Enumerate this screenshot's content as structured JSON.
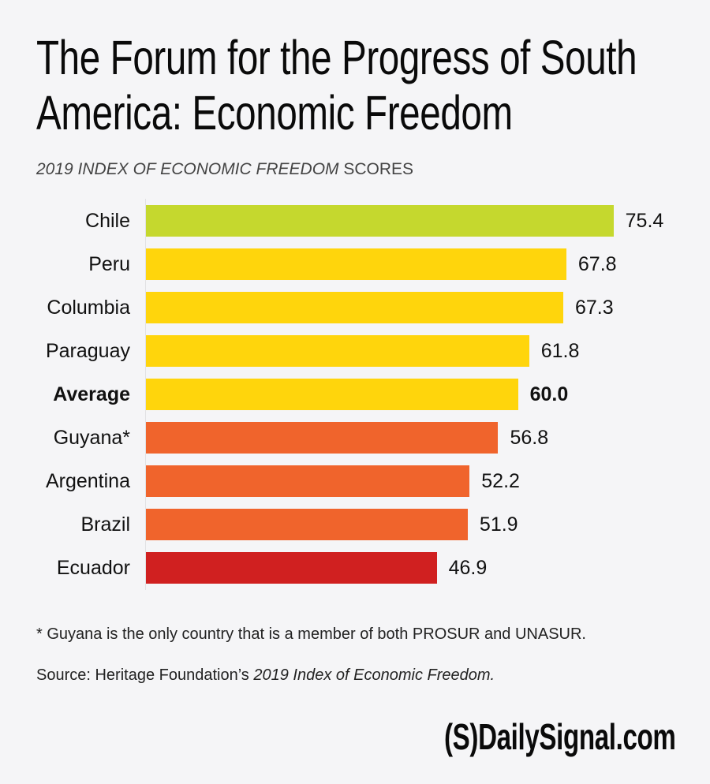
{
  "header": {
    "title_line1": "The Forum for the Progress of South",
    "title_line2": "America: Economic Freedom",
    "subtitle_italic": "2019 INDEX OF ECONOMIC FREEDOM",
    "subtitle_regular": " SCORES"
  },
  "chart_data": {
    "type": "bar",
    "orientation": "horizontal",
    "title": "The Forum for the Progress of South America: Economic Freedom",
    "subtitle": "2019 INDEX OF ECONOMIC FREEDOM SCORES",
    "xlabel": "",
    "ylabel": "",
    "xlim": [
      0,
      80
    ],
    "grid": false,
    "categories": [
      "Chile",
      "Peru",
      "Columbia",
      "Paraguay",
      "Average",
      "Guyana*",
      "Argentina",
      "Brazil",
      "Ecuador"
    ],
    "values": [
      75.4,
      67.8,
      67.3,
      61.8,
      60.0,
      56.8,
      52.2,
      51.9,
      46.9
    ],
    "value_labels": [
      "75.4",
      "67.8",
      "67.3",
      "61.8",
      "60.0",
      "56.8",
      "52.2",
      "51.9",
      "46.9"
    ],
    "bar_colors": [
      "#c5d82e",
      "#ffd50c",
      "#ffd50c",
      "#ffd50c",
      "#ffd50c",
      "#f0642c",
      "#f0642c",
      "#f0642c",
      "#d02020"
    ],
    "bold_categories": [
      "Average"
    ]
  },
  "footer": {
    "footnote": "* Guyana is the only country that is a member of both PROSUR and UNASUR.",
    "source_prefix": "Source: Heritage Foundation’s ",
    "source_italic": "2019 Index of Economic Freedom.",
    "logo": "(S)DailySignal.com"
  }
}
